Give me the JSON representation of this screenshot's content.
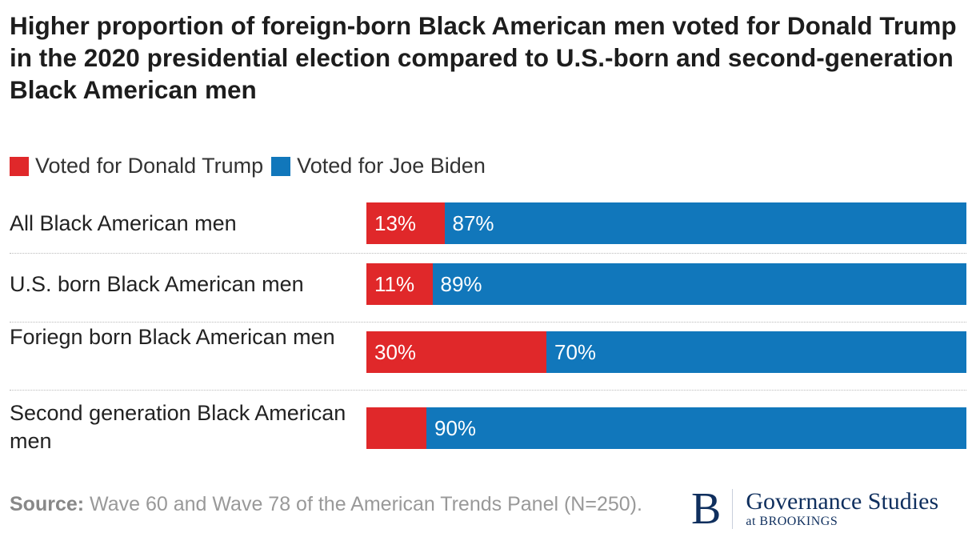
{
  "chart_data": {
    "type": "bar",
    "orientation": "horizontal-stacked",
    "title": "Higher proportion of foreign-born Black American men voted for Donald Trump in the 2020 presidential election compared to U.S.-born and second-generation Black American men",
    "legend": [
      "Voted for Donald Trump",
      "Voted for Joe Biden"
    ],
    "legend_position": "top-left",
    "colors": {
      "trump": "#e0282a",
      "biden": "#1177bb"
    },
    "xlim": [
      0,
      100
    ],
    "categories": [
      "All Black American men",
      "U.S. born Black American men",
      "Foriegn born Black American men",
      "Second generation Black American men"
    ],
    "series": [
      {
        "name": "Voted for Donald Trump",
        "values": [
          13,
          11,
          30,
          10
        ],
        "labels": [
          "13%",
          "11%",
          "30%",
          ""
        ]
      },
      {
        "name": "Voted for Joe Biden",
        "values": [
          87,
          89,
          70,
          90
        ],
        "labels": [
          "87%",
          "89%",
          "70%",
          "90%"
        ]
      }
    ]
  },
  "source": {
    "label": "Source:",
    "text": "Wave 60 and Wave 78 of the American Trends Panel (N=250)."
  },
  "logo": {
    "letter": "B",
    "name": "Governance Studies",
    "sub": "at BROOKINGS"
  }
}
